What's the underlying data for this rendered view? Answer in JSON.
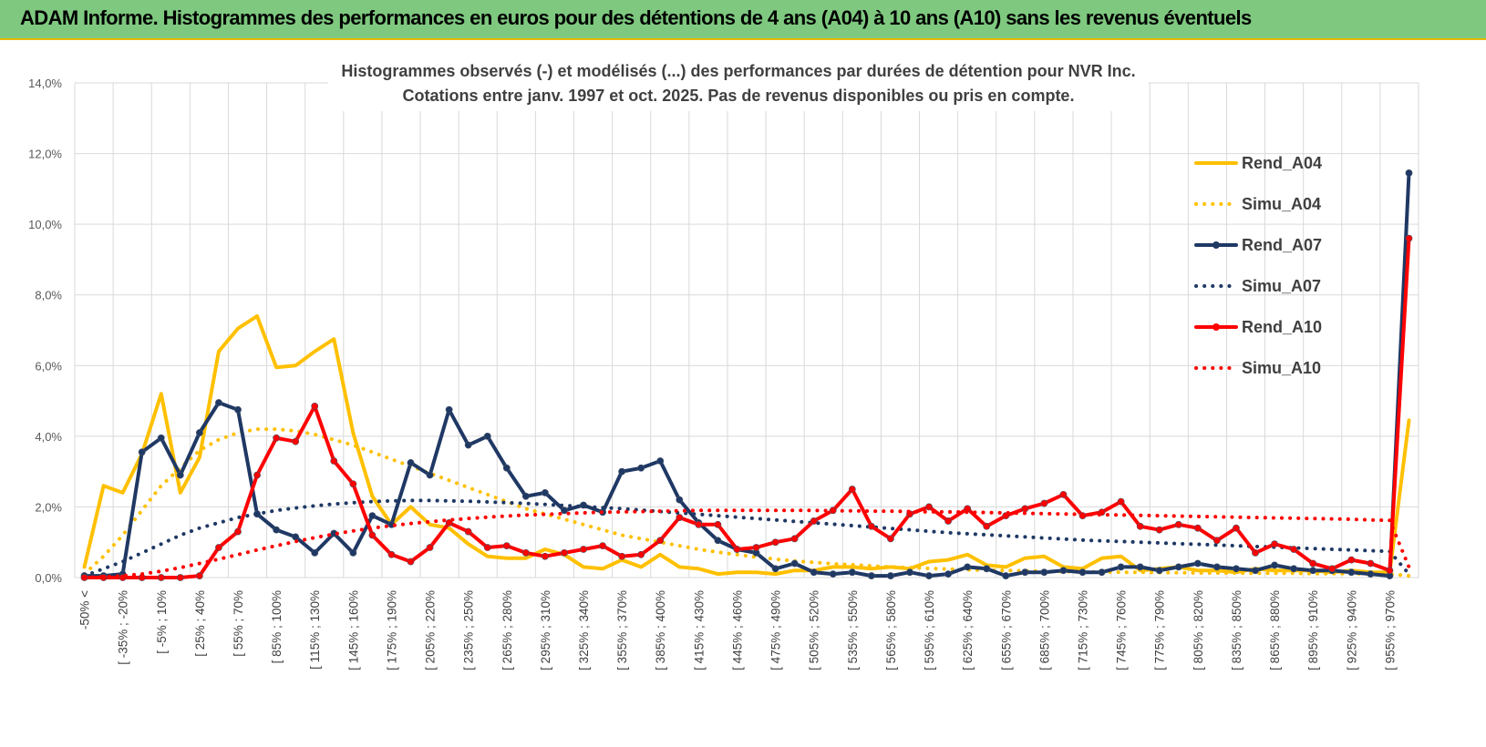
{
  "header": {
    "title": "ADAM Informe. Histogrammes des performances en euros pour des détentions de 4 ans (A04) à 10 ans (A10) sans les revenus éventuels"
  },
  "colors": {
    "header_bg": "#7ec97f",
    "header_border": "#e8b800",
    "a04": "#FFC000",
    "a07": "#1F3864",
    "a10": "#FF0000",
    "grid": "#d9d9d9"
  },
  "chart_data": {
    "type": "line",
    "title_lines": [
      "Histogrammes observés (-) et modélisés (...) des performances par durées de détention pour NVR Inc.",
      "Cotations entre janv. 1997 et oct. 2025. Pas de revenus disponibles ou pris en compte."
    ],
    "ylim": [
      0,
      14
    ],
    "y_ticks": [
      0,
      2,
      4,
      6,
      8,
      10,
      12,
      14
    ],
    "y_tick_labels": [
      "0,0%",
      "2,0%",
      "4,0%",
      "6,0%",
      "8,0%",
      "10,0%",
      "12,0%",
      "14,0%"
    ],
    "category_count": 70,
    "x_tick_labels": [
      "-50% <",
      "[ -35% ; -20%",
      "[ -5% ; 10%",
      "[ 25% ; 40%",
      "[ 55% ; 70%",
      "[ 85% ; 100%",
      "[ 115% ; 130%",
      "[ 145% ; 160%",
      "[ 175% ; 190%",
      "[ 205% ; 220%",
      "[ 235% ; 250%",
      "[ 265% ; 280%",
      "[ 295% ; 310%",
      "[ 325% ; 340%",
      "[ 355% ; 370%",
      "[ 385% ; 400%",
      "[ 415% ; 430%",
      "[ 445% ; 460%",
      "[ 475% ; 490%",
      "[ 505% ; 520%",
      "[ 535% ; 550%",
      "[ 565% ; 580%",
      "[ 595% ; 610%",
      "[ 625% ; 640%",
      "[ 655% ; 670%",
      "[ 685% ; 700%",
      "[ 715% ; 730%",
      "[ 745% ; 760%",
      "[ 775% ; 790%",
      "[ 805% ; 820%",
      "[ 835% ; 850%",
      "[ 865% ; 880%",
      "[ 895% ; 910%",
      "[ 925% ; 940%",
      "[ 955% ; 970%"
    ],
    "legend": {
      "position": "right",
      "entries": [
        "Rend_A04",
        "Simu_A04",
        "Rend_A07",
        "Simu_A07",
        "Rend_A10",
        "Simu_A10"
      ]
    },
    "series": [
      {
        "name": "Rend_A04",
        "style": "solid",
        "color": "#FFC000",
        "markers": false,
        "values": [
          0.3,
          2.6,
          2.4,
          3.5,
          5.2,
          2.4,
          3.4,
          6.4,
          7.05,
          7.4,
          5.95,
          6.0,
          6.4,
          6.75,
          4.1,
          2.3,
          1.5,
          2.0,
          1.5,
          1.4,
          0.95,
          0.6,
          0.55,
          0.55,
          0.8,
          0.65,
          0.3,
          0.25,
          0.5,
          0.3,
          0.65,
          0.3,
          0.25,
          0.1,
          0.15,
          0.15,
          0.1,
          0.2,
          0.2,
          0.3,
          0.3,
          0.25,
          0.3,
          0.25,
          0.45,
          0.5,
          0.65,
          0.35,
          0.3,
          0.55,
          0.6,
          0.3,
          0.25,
          0.55,
          0.6,
          0.2,
          0.25,
          0.3,
          0.2,
          0.2,
          0.15,
          0.25,
          0.2,
          0.2,
          0.2,
          0.15,
          0.2,
          0.15,
          0.15,
          4.45
        ]
      },
      {
        "name": "Simu_A04",
        "style": "dotted",
        "color": "#FFC000",
        "markers": false,
        "values": [
          0.1,
          0.6,
          1.2,
          1.9,
          2.6,
          3.1,
          3.6,
          3.9,
          4.1,
          4.2,
          4.2,
          4.15,
          4.05,
          3.9,
          3.75,
          3.55,
          3.35,
          3.15,
          2.95,
          2.75,
          2.55,
          2.35,
          2.15,
          1.95,
          1.8,
          1.65,
          1.5,
          1.35,
          1.2,
          1.1,
          1.0,
          0.9,
          0.8,
          0.72,
          0.65,
          0.58,
          0.52,
          0.47,
          0.43,
          0.39,
          0.36,
          0.33,
          0.3,
          0.28,
          0.26,
          0.24,
          0.22,
          0.21,
          0.2,
          0.19,
          0.18,
          0.17,
          0.16,
          0.16,
          0.15,
          0.15,
          0.14,
          0.14,
          0.13,
          0.13,
          0.13,
          0.12,
          0.12,
          0.12,
          0.11,
          0.11,
          0.11,
          0.1,
          0.1,
          0.05
        ]
      },
      {
        "name": "Rend_A07",
        "style": "solid",
        "color": "#1F3864",
        "markers": true,
        "values": [
          0.05,
          0.05,
          0.1,
          3.55,
          3.95,
          2.9,
          4.1,
          4.95,
          4.75,
          1.8,
          1.35,
          1.15,
          0.7,
          1.25,
          0.7,
          1.75,
          1.5,
          3.25,
          2.9,
          4.75,
          3.75,
          4.0,
          3.1,
          2.3,
          2.4,
          1.9,
          2.05,
          1.85,
          3.0,
          3.1,
          3.3,
          2.2,
          1.55,
          1.05,
          0.8,
          0.7,
          0.25,
          0.4,
          0.15,
          0.1,
          0.15,
          0.05,
          0.05,
          0.15,
          0.05,
          0.1,
          0.3,
          0.25,
          0.05,
          0.15,
          0.15,
          0.2,
          0.15,
          0.15,
          0.3,
          0.3,
          0.2,
          0.3,
          0.4,
          0.3,
          0.25,
          0.2,
          0.35,
          0.25,
          0.2,
          0.2,
          0.15,
          0.1,
          0.05,
          11.45
        ]
      },
      {
        "name": "Simu_A07",
        "style": "dotted",
        "color": "#1F3864",
        "markers": false,
        "values": [
          0.05,
          0.25,
          0.45,
          0.7,
          0.95,
          1.2,
          1.4,
          1.55,
          1.7,
          1.8,
          1.9,
          1.97,
          2.03,
          2.08,
          2.12,
          2.15,
          2.17,
          2.18,
          2.18,
          2.17,
          2.16,
          2.14,
          2.12,
          2.1,
          2.07,
          2.04,
          2.01,
          1.98,
          1.95,
          1.91,
          1.87,
          1.83,
          1.79,
          1.75,
          1.71,
          1.67,
          1.63,
          1.59,
          1.55,
          1.51,
          1.47,
          1.43,
          1.39,
          1.35,
          1.31,
          1.27,
          1.24,
          1.21,
          1.18,
          1.15,
          1.12,
          1.09,
          1.06,
          1.04,
          1.02,
          1.0,
          0.98,
          0.96,
          0.94,
          0.92,
          0.9,
          0.88,
          0.86,
          0.84,
          0.82,
          0.8,
          0.78,
          0.76,
          0.74,
          0.1
        ]
      },
      {
        "name": "Rend_A10",
        "style": "solid",
        "color": "#FF0000",
        "markers": true,
        "values": [
          0.0,
          0.0,
          0.0,
          0.0,
          0.0,
          0.0,
          0.05,
          0.85,
          1.3,
          2.9,
          3.95,
          3.85,
          4.85,
          3.3,
          2.65,
          1.2,
          0.65,
          0.45,
          0.85,
          1.55,
          1.3,
          0.85,
          0.9,
          0.7,
          0.6,
          0.7,
          0.8,
          0.9,
          0.6,
          0.65,
          1.05,
          1.7,
          1.5,
          1.5,
          0.8,
          0.85,
          1.0,
          1.1,
          1.6,
          1.9,
          2.5,
          1.45,
          1.1,
          1.8,
          2.0,
          1.6,
          1.95,
          1.45,
          1.75,
          1.95,
          2.1,
          2.35,
          1.75,
          1.85,
          2.15,
          1.45,
          1.35,
          1.5,
          1.4,
          1.05,
          1.4,
          0.7,
          0.95,
          0.8,
          0.4,
          0.25,
          0.5,
          0.4,
          0.2,
          9.6
        ]
      },
      {
        "name": "Simu_A10",
        "style": "dotted",
        "color": "#FF0000",
        "markers": false,
        "values": [
          0.0,
          0.02,
          0.05,
          0.1,
          0.18,
          0.28,
          0.4,
          0.52,
          0.65,
          0.78,
          0.9,
          1.02,
          1.13,
          1.23,
          1.32,
          1.4,
          1.47,
          1.53,
          1.58,
          1.63,
          1.67,
          1.71,
          1.74,
          1.77,
          1.79,
          1.81,
          1.83,
          1.85,
          1.86,
          1.87,
          1.88,
          1.89,
          1.9,
          1.9,
          1.9,
          1.9,
          1.9,
          1.9,
          1.9,
          1.89,
          1.89,
          1.88,
          1.88,
          1.87,
          1.86,
          1.86,
          1.85,
          1.84,
          1.83,
          1.82,
          1.81,
          1.8,
          1.79,
          1.78,
          1.77,
          1.76,
          1.75,
          1.74,
          1.73,
          1.72,
          1.71,
          1.7,
          1.69,
          1.68,
          1.67,
          1.66,
          1.65,
          1.63,
          1.62,
          0.3
        ]
      }
    ]
  }
}
